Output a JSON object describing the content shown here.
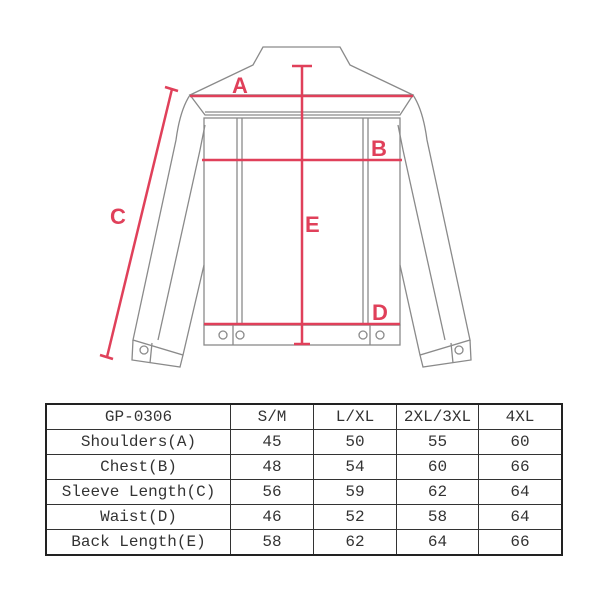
{
  "diagram": {
    "labels": {
      "A": "A",
      "B": "B",
      "C": "C",
      "D": "D",
      "E": "E"
    },
    "colors": {
      "measure": "#e0405a",
      "outline": "#8a8a8a"
    }
  },
  "table": {
    "header": [
      "GP-0306",
      "S/M",
      "L/XL",
      "2XL/3XL",
      "4XL"
    ],
    "rows": [
      [
        "Shoulders(A)",
        "45",
        "50",
        "55",
        "60"
      ],
      [
        "Chest(B)",
        "48",
        "54",
        "60",
        "66"
      ],
      [
        "Sleeve Length(C)",
        "56",
        "59",
        "62",
        "64"
      ],
      [
        "Waist(D)",
        "46",
        "52",
        "58",
        "64"
      ],
      [
        "Back Length(E)",
        "58",
        "62",
        "64",
        "66"
      ]
    ]
  }
}
